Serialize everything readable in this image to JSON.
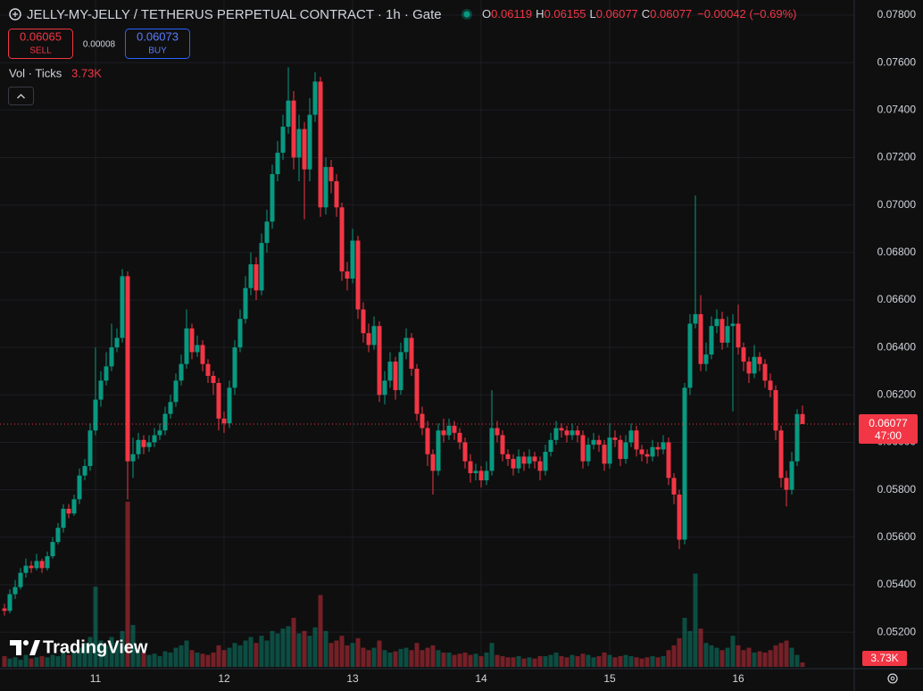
{
  "header": {
    "title": "JELLY-MY-JELLY / TETHERUS PERPETUAL CONTRACT · 1h · Gate",
    "ohlc_labels": [
      "O",
      "H",
      "L",
      "C"
    ],
    "change": "−0.00042 (−0.69%)",
    "sell_price": "0.06065",
    "sell": "SELL",
    "spread": "0.00008",
    "buy_price": "0.06073",
    "buy": "BUY",
    "volume_title": "Vol · Ticks",
    "volume_value": "3.73K",
    "countdown": "47:00",
    "brand": "TradingView"
  },
  "chart_data": {
    "type": "candlestick",
    "up_color": "#089981",
    "down_color": "#f23645",
    "grid": true,
    "ylim": [
      0.0505,
      0.0786
    ],
    "yticks": [
      {
        "value": 0.052,
        "label": "0.05200"
      },
      {
        "value": 0.054,
        "label": "0.05400"
      },
      {
        "value": 0.056,
        "label": "0.05600"
      },
      {
        "value": 0.058,
        "label": "0.05800"
      },
      {
        "value": 0.06,
        "label": "0.06000"
      },
      {
        "value": 0.062,
        "label": "0.06200"
      },
      {
        "value": 0.064,
        "label": "0.06400"
      },
      {
        "value": 0.066,
        "label": "0.06600"
      },
      {
        "value": 0.068,
        "label": "0.06800"
      },
      {
        "value": 0.07,
        "label": "0.07000"
      },
      {
        "value": 0.072,
        "label": "0.07200"
      },
      {
        "value": 0.074,
        "label": "0.07400"
      },
      {
        "value": 0.076,
        "label": "0.07600"
      },
      {
        "value": 0.078,
        "label": "0.07800"
      }
    ],
    "categories": [
      null,
      null,
      null,
      null,
      null,
      null,
      null,
      null,
      null,
      null,
      null,
      null,
      null,
      null,
      null,
      null,
      null,
      "11",
      null,
      null,
      null,
      null,
      null,
      null,
      null,
      null,
      null,
      null,
      null,
      null,
      null,
      null,
      null,
      null,
      null,
      null,
      null,
      null,
      null,
      null,
      null,
      "12",
      null,
      null,
      null,
      null,
      null,
      null,
      null,
      null,
      null,
      null,
      null,
      null,
      null,
      null,
      null,
      null,
      null,
      null,
      null,
      null,
      null,
      null,
      null,
      "13",
      null,
      null,
      null,
      null,
      null,
      null,
      null,
      null,
      null,
      null,
      null,
      null,
      null,
      null,
      null,
      null,
      null,
      null,
      null,
      null,
      null,
      null,
      null,
      "14",
      null,
      null,
      null,
      null,
      null,
      null,
      null,
      null,
      null,
      null,
      null,
      null,
      null,
      null,
      null,
      null,
      null,
      null,
      null,
      null,
      null,
      null,
      null,
      "15",
      null,
      null,
      null,
      null,
      null,
      null,
      null,
      null,
      null,
      null,
      null,
      null,
      null,
      null,
      null,
      null,
      null,
      null,
      null,
      null,
      null,
      null,
      null,
      "16",
      null,
      null,
      null,
      null,
      null,
      null,
      null,
      null,
      null,
      null,
      null,
      null
    ],
    "open": [
      0.053,
      0.0529,
      0.0536,
      0.0539,
      0.0545,
      0.0548,
      0.0547,
      0.055,
      0.0547,
      0.0552,
      0.0558,
      0.0564,
      0.0572,
      0.057,
      0.0576,
      0.0586,
      0.059,
      0.0605,
      0.0618,
      0.0626,
      0.0632,
      0.064,
      0.0644,
      0.067,
      0.0592,
      0.0595,
      0.0601,
      0.0598,
      0.06,
      0.0603,
      0.0605,
      0.0612,
      0.0617,
      0.0626,
      0.0633,
      0.0648,
      0.0638,
      0.0641,
      0.0633,
      0.0628,
      0.0625,
      0.061,
      0.0608,
      0.0623,
      0.064,
      0.0652,
      0.0665,
      0.0675,
      0.0664,
      0.0684,
      0.0693,
      0.0713,
      0.0722,
      0.0733,
      0.0744,
      0.072,
      0.0732,
      0.0715,
      0.0738,
      0.0752,
      0.0699,
      0.0716,
      0.071,
      0.0699,
      0.0672,
      0.0669,
      0.0685,
      0.0656,
      0.0646,
      0.0641,
      0.0649,
      0.062,
      0.0626,
      0.0634,
      0.0622,
      0.0638,
      0.0644,
      0.0631,
      0.0612,
      0.0606,
      0.0595,
      0.0588,
      0.0605,
      0.0603,
      0.0607,
      0.0604,
      0.06,
      0.0592,
      0.0587,
      0.0588,
      0.0584,
      0.0588,
      0.0606,
      0.0603,
      0.0595,
      0.0593,
      0.0589,
      0.0594,
      0.0591,
      0.0594,
      0.0592,
      0.0588,
      0.0596,
      0.0601,
      0.0606,
      0.0605,
      0.0603,
      0.0605,
      0.0603,
      0.0592,
      0.0599,
      0.0601,
      0.0599,
      0.0591,
      0.0602,
      0.0601,
      0.0593,
      0.06,
      0.0605,
      0.0597,
      0.0595,
      0.0594,
      0.0598,
      0.0597,
      0.06,
      0.0585,
      0.0578,
      0.0559,
      0.0623,
      0.065,
      0.0654,
      0.0633,
      0.0637,
      0.0649,
      0.0652,
      0.0642,
      0.0649,
      0.065,
      0.064,
      0.0634,
      0.0629,
      0.0636,
      0.0633,
      0.0626,
      0.0622,
      0.0605,
      0.0585,
      0.058,
      0.0592,
      0.06119
    ],
    "high": [
      0.0532,
      0.0538,
      0.0542,
      0.0547,
      0.0551,
      0.055,
      0.0553,
      0.0551,
      0.0554,
      0.056,
      0.0566,
      0.0574,
      0.0574,
      0.0578,
      0.0589,
      0.0593,
      0.0608,
      0.064,
      0.063,
      0.0638,
      0.065,
      0.0648,
      0.0673,
      0.0672,
      0.0602,
      0.0604,
      0.0603,
      0.0603,
      0.0606,
      0.0608,
      0.0615,
      0.062,
      0.0629,
      0.0637,
      0.0656,
      0.065,
      0.0645,
      0.0643,
      0.0635,
      0.063,
      0.0627,
      0.0613,
      0.0626,
      0.0643,
      0.0656,
      0.067,
      0.068,
      0.0678,
      0.0688,
      0.0698,
      0.0717,
      0.0727,
      0.0738,
      0.0758,
      0.0748,
      0.0738,
      0.0735,
      0.0745,
      0.0756,
      0.0754,
      0.072,
      0.0719,
      0.0713,
      0.0701,
      0.0676,
      0.069,
      0.0687,
      0.0659,
      0.065,
      0.0653,
      0.0651,
      0.063,
      0.0638,
      0.0636,
      0.0642,
      0.0648,
      0.0646,
      0.0633,
      0.0615,
      0.0609,
      0.0597,
      0.0608,
      0.061,
      0.061,
      0.0609,
      0.0606,
      0.0602,
      0.0595,
      0.0591,
      0.059,
      0.0592,
      0.0622,
      0.0609,
      0.0605,
      0.0597,
      0.0595,
      0.0597,
      0.0596,
      0.0597,
      0.0596,
      0.0594,
      0.0599,
      0.0604,
      0.0609,
      0.0608,
      0.0607,
      0.0608,
      0.0607,
      0.0605,
      0.0602,
      0.0604,
      0.0603,
      0.0601,
      0.0608,
      0.0605,
      0.0603,
      0.0603,
      0.0608,
      0.0607,
      0.0599,
      0.0597,
      0.0601,
      0.06,
      0.0603,
      0.0602,
      0.0587,
      0.058,
      0.0625,
      0.0654,
      0.0704,
      0.0662,
      0.0642,
      0.0653,
      0.0656,
      0.0655,
      0.0653,
      0.0654,
      0.0658,
      0.0642,
      0.0636,
      0.0641,
      0.0638,
      0.0635,
      0.0629,
      0.0624,
      0.0607,
      0.0588,
      0.0596,
      0.0614,
      0.06155
    ],
    "low": [
      0.0527,
      0.0528,
      0.0534,
      0.0538,
      0.0543,
      0.0545,
      0.0546,
      0.0545,
      0.0546,
      0.0551,
      0.0557,
      0.0562,
      0.0568,
      0.0569,
      0.0574,
      0.0584,
      0.0588,
      0.0603,
      0.0615,
      0.0624,
      0.063,
      0.0638,
      0.0642,
      0.0576,
      0.0585,
      0.0593,
      0.0595,
      0.0596,
      0.0598,
      0.0601,
      0.0603,
      0.061,
      0.0615,
      0.0624,
      0.0631,
      0.0635,
      0.0636,
      0.063,
      0.0625,
      0.062,
      0.0605,
      0.0604,
      0.0606,
      0.062,
      0.0638,
      0.065,
      0.0662,
      0.066,
      0.0662,
      0.068,
      0.069,
      0.071,
      0.0719,
      0.073,
      0.0715,
      0.071,
      0.0694,
      0.071,
      0.0735,
      0.0695,
      0.0696,
      0.0705,
      0.0695,
      0.0668,
      0.0664,
      0.0667,
      0.0652,
      0.0642,
      0.0638,
      0.0639,
      0.0617,
      0.0616,
      0.0623,
      0.0618,
      0.062,
      0.0635,
      0.0628,
      0.0609,
      0.0603,
      0.059,
      0.0578,
      0.0586,
      0.06,
      0.0601,
      0.0601,
      0.0597,
      0.0589,
      0.0583,
      0.0584,
      0.0581,
      0.0582,
      0.0586,
      0.06,
      0.0592,
      0.059,
      0.0586,
      0.0587,
      0.0588,
      0.0589,
      0.0589,
      0.0584,
      0.0586,
      0.0594,
      0.0599,
      0.0602,
      0.06,
      0.0601,
      0.06,
      0.0589,
      0.059,
      0.0597,
      0.0596,
      0.0588,
      0.0589,
      0.0598,
      0.059,
      0.0591,
      0.0598,
      0.0594,
      0.0592,
      0.0591,
      0.0592,
      0.0594,
      0.0595,
      0.0582,
      0.0574,
      0.0555,
      0.0557,
      0.062,
      0.0648,
      0.063,
      0.063,
      0.0635,
      0.0646,
      0.0639,
      0.064,
      0.0613,
      0.0637,
      0.063,
      0.0625,
      0.0627,
      0.063,
      0.0623,
      0.0619,
      0.0601,
      0.0581,
      0.0573,
      0.0578,
      0.059,
      0.06077
    ],
    "close": [
      0.0529,
      0.0536,
      0.0539,
      0.0545,
      0.0548,
      0.0547,
      0.055,
      0.0547,
      0.0552,
      0.0558,
      0.0564,
      0.0572,
      0.057,
      0.0576,
      0.0586,
      0.059,
      0.0605,
      0.0618,
      0.0626,
      0.0632,
      0.064,
      0.0644,
      0.067,
      0.0592,
      0.0595,
      0.0601,
      0.0598,
      0.06,
      0.0603,
      0.0605,
      0.0612,
      0.0617,
      0.0626,
      0.0633,
      0.0648,
      0.0638,
      0.0641,
      0.0633,
      0.0628,
      0.0625,
      0.061,
      0.0608,
      0.0623,
      0.064,
      0.0652,
      0.0665,
      0.0675,
      0.0664,
      0.0684,
      0.0693,
      0.0713,
      0.0722,
      0.0733,
      0.0744,
      0.072,
      0.0732,
      0.0715,
      0.0738,
      0.0752,
      0.0699,
      0.0716,
      0.071,
      0.0699,
      0.0672,
      0.0669,
      0.0685,
      0.0656,
      0.0646,
      0.0641,
      0.0649,
      0.062,
      0.0626,
      0.0634,
      0.0622,
      0.0638,
      0.0644,
      0.0631,
      0.0612,
      0.0606,
      0.0595,
      0.0588,
      0.0605,
      0.0603,
      0.0607,
      0.0604,
      0.06,
      0.0592,
      0.0587,
      0.0588,
      0.0584,
      0.0588,
      0.0606,
      0.0603,
      0.0595,
      0.0593,
      0.0589,
      0.0594,
      0.0591,
      0.0594,
      0.0592,
      0.0588,
      0.0596,
      0.0601,
      0.0606,
      0.0605,
      0.0603,
      0.0605,
      0.0603,
      0.0592,
      0.0599,
      0.0601,
      0.0599,
      0.0591,
      0.0602,
      0.0601,
      0.0593,
      0.06,
      0.0605,
      0.0597,
      0.0595,
      0.0594,
      0.0598,
      0.0597,
      0.06,
      0.0585,
      0.0578,
      0.0559,
      0.0623,
      0.065,
      0.0654,
      0.0633,
      0.0637,
      0.0649,
      0.0652,
      0.0642,
      0.0649,
      0.065,
      0.064,
      0.0634,
      0.0629,
      0.0636,
      0.0633,
      0.0626,
      0.0622,
      0.0605,
      0.0585,
      0.058,
      0.0592,
      0.06119,
      0.06077
    ],
    "volume": [
      9000,
      7000,
      8000,
      6000,
      10000,
      7000,
      8000,
      9000,
      8000,
      10000,
      9000,
      12000,
      10000,
      14000,
      16000,
      20000,
      25000,
      67000,
      22000,
      18000,
      25000,
      20000,
      30000,
      138000,
      35000,
      14000,
      12000,
      10000,
      11000,
      9000,
      13000,
      12000,
      16000,
      18000,
      22000,
      14000,
      12000,
      11000,
      10000,
      12000,
      18000,
      14000,
      16000,
      20000,
      18000,
      22000,
      25000,
      20000,
      26000,
      22000,
      30000,
      28000,
      32000,
      34000,
      41000,
      28000,
      30000,
      26000,
      33000,
      60000,
      30000,
      20000,
      22000,
      26000,
      18000,
      20000,
      24000,
      16000,
      14000,
      16000,
      22000,
      14000,
      12000,
      13000,
      15000,
      16000,
      14000,
      20000,
      14000,
      16000,
      18000,
      14000,
      12000,
      12000,
      10000,
      11000,
      12000,
      10000,
      11000,
      9000,
      12000,
      20000,
      10000,
      9000,
      8000,
      8000,
      9000,
      7000,
      8000,
      7000,
      9000,
      9000,
      10000,
      12000,
      9000,
      8000,
      10000,
      9000,
      11000,
      10000,
      8000,
      9000,
      12000,
      10000,
      8000,
      9000,
      10000,
      9000,
      8000,
      7000,
      8000,
      9000,
      8000,
      9000,
      14000,
      18000,
      24000,
      41000,
      30000,
      78000,
      32000,
      20000,
      18000,
      16000,
      14000,
      16000,
      26000,
      18000,
      14000,
      16000,
      12000,
      13000,
      12000,
      14000,
      18000,
      20000,
      22000,
      16000,
      10000,
      3730
    ]
  }
}
